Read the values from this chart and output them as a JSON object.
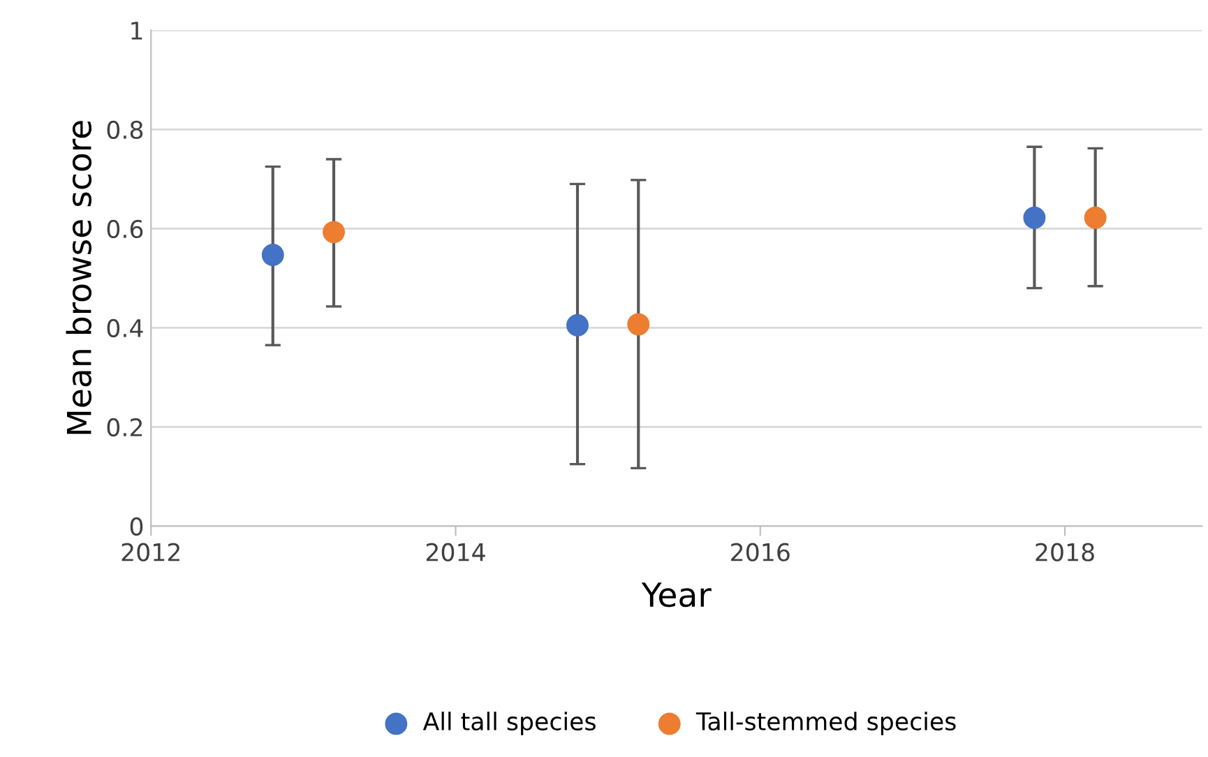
{
  "chart_data": {
    "type": "scatter",
    "xlabel": "Year",
    "ylabel": "Mean browse score",
    "series": [
      {
        "name": "All tall species",
        "color": "#4472c4",
        "x": [
          2012.8,
          2014.8,
          2017.8
        ],
        "values": [
          0.547,
          0.405,
          0.622
        ],
        "errors": [
          [
            0.365,
            0.725
          ],
          [
            0.125,
            0.69
          ],
          [
            0.48,
            0.765
          ]
        ]
      },
      {
        "name": "Tall-stemmed species",
        "color": "#ed7d31",
        "x": [
          2013.2,
          2015.2,
          2018.2
        ],
        "values": [
          0.593,
          0.407,
          0.622
        ],
        "errors": [
          [
            0.443,
            0.74
          ],
          [
            0.117,
            0.698
          ],
          [
            0.484,
            0.762
          ]
        ]
      }
    ],
    "xlim": [
      2012,
      2018.9
    ],
    "xticks": [
      2012,
      2014,
      2016,
      2018
    ],
    "ylim": [
      0,
      1
    ],
    "yticks": [
      0,
      0.2,
      0.4,
      0.6,
      0.8,
      1
    ],
    "grid": "y",
    "legend": "bottom",
    "marker": "circle"
  }
}
